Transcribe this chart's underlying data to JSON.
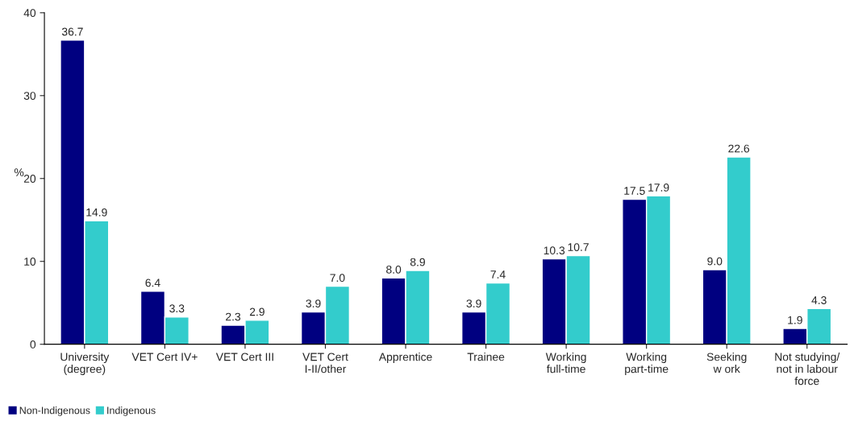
{
  "chart_data": {
    "type": "bar",
    "ylabel": "%",
    "categories": [
      "University\n(degree)",
      "VET Cert IV+",
      "VET Cert III",
      "VET Cert\nI-II/other",
      "Apprentice",
      "Trainee",
      "Working\nfull-time",
      "Working\npart-time",
      "Seeking\nw ork",
      "Not studying/\nnot in labour\nforce"
    ],
    "series": [
      {
        "name": "Non-Indigenous",
        "color": "#000080",
        "values": [
          36.7,
          6.4,
          2.3,
          3.9,
          8.0,
          3.9,
          10.3,
          17.5,
          9.0,
          1.9
        ],
        "value_labels": [
          "36.7",
          "6.4",
          "2.3",
          "3.9",
          "8.0",
          "3.9",
          "10.3",
          "17.5",
          "9.0",
          "1.9"
        ]
      },
      {
        "name": "Indigenous",
        "color": "#33cccc",
        "values": [
          14.9,
          3.3,
          2.9,
          7.0,
          8.9,
          7.4,
          10.7,
          17.9,
          22.6,
          4.3
        ],
        "value_labels": [
          "14.9",
          "3.3",
          "2.9",
          "7.0",
          "8.9",
          "7.4",
          "10.7",
          "17.9",
          "22.6",
          "4.3"
        ]
      }
    ],
    "ylim": [
      0,
      40
    ],
    "yticks": [
      0,
      10,
      20,
      30,
      40
    ],
    "legend": "bottom left",
    "grid": false
  }
}
